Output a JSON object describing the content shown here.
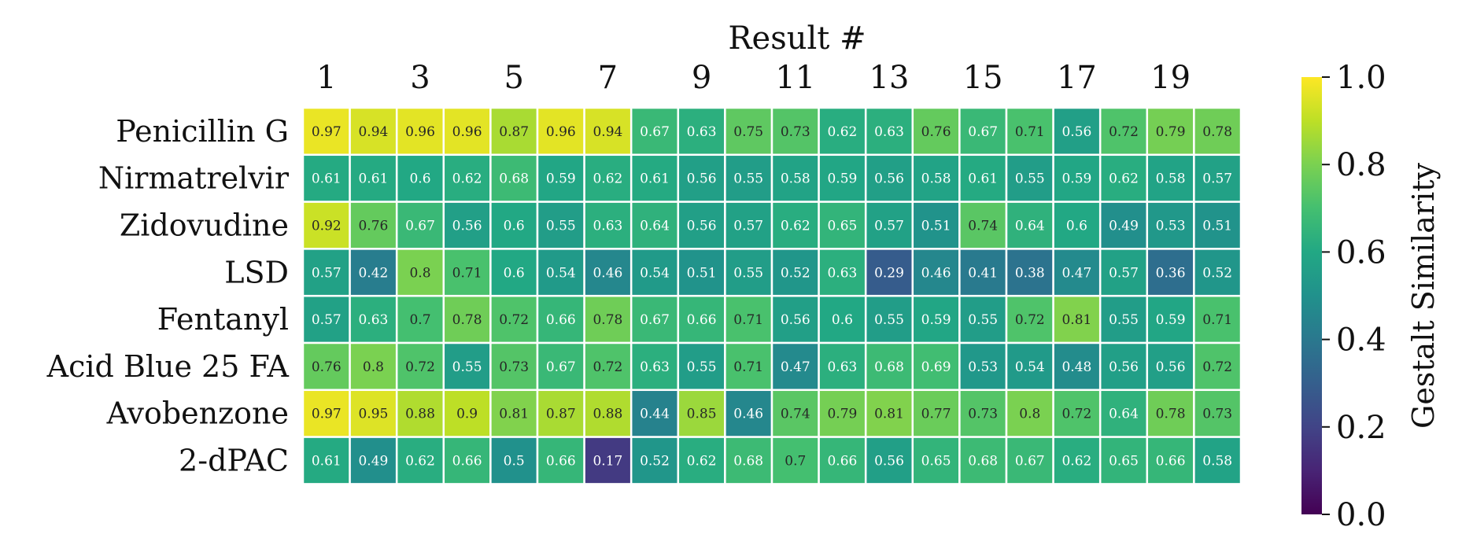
{
  "chart_data": {
    "type": "heatmap",
    "xlabel": "Result #",
    "x_categories": [
      "1",
      "2",
      "3",
      "4",
      "5",
      "6",
      "7",
      "8",
      "9",
      "10",
      "11",
      "12",
      "13",
      "14",
      "15",
      "16",
      "17",
      "18",
      "19",
      "20"
    ],
    "x_tick_labels": [
      "1",
      "",
      "3",
      "",
      "5",
      "",
      "7",
      "",
      "9",
      "",
      "11",
      "",
      "13",
      "",
      "15",
      "",
      "17",
      "",
      "19",
      ""
    ],
    "y_categories": [
      "Penicillin G",
      "Nirmatrelvir",
      "Zidovudine",
      "LSD",
      "Fentanyl",
      "Acid Blue 25 FA",
      "Avobenzone",
      "2-dPAC"
    ],
    "values": [
      [
        0.97,
        0.94,
        0.96,
        0.96,
        0.87,
        0.96,
        0.94,
        0.67,
        0.63,
        0.75,
        0.73,
        0.62,
        0.63,
        0.76,
        0.67,
        0.71,
        0.56,
        0.72,
        0.79,
        0.78
      ],
      [
        0.61,
        0.61,
        0.6,
        0.62,
        0.68,
        0.59,
        0.62,
        0.61,
        0.56,
        0.55,
        0.58,
        0.59,
        0.56,
        0.58,
        0.61,
        0.55,
        0.59,
        0.62,
        0.58,
        0.57
      ],
      [
        0.92,
        0.76,
        0.67,
        0.56,
        0.6,
        0.55,
        0.63,
        0.64,
        0.56,
        0.57,
        0.62,
        0.65,
        0.57,
        0.51,
        0.74,
        0.64,
        0.6,
        0.49,
        0.53,
        0.51
      ],
      [
        0.57,
        0.42,
        0.8,
        0.71,
        0.6,
        0.54,
        0.46,
        0.54,
        0.51,
        0.55,
        0.52,
        0.63,
        0.29,
        0.46,
        0.41,
        0.38,
        0.47,
        0.57,
        0.36,
        0.52
      ],
      [
        0.57,
        0.63,
        0.7,
        0.78,
        0.72,
        0.66,
        0.78,
        0.67,
        0.66,
        0.71,
        0.56,
        0.6,
        0.55,
        0.59,
        0.55,
        0.72,
        0.81,
        0.55,
        0.59,
        0.71
      ],
      [
        0.76,
        0.8,
        0.72,
        0.55,
        0.73,
        0.67,
        0.72,
        0.63,
        0.55,
        0.71,
        0.47,
        0.63,
        0.68,
        0.69,
        0.53,
        0.54,
        0.48,
        0.56,
        0.56,
        0.72
      ],
      [
        0.97,
        0.95,
        0.88,
        0.9,
        0.81,
        0.87,
        0.88,
        0.44,
        0.85,
        0.46,
        0.74,
        0.79,
        0.81,
        0.77,
        0.73,
        0.8,
        0.72,
        0.64,
        0.78,
        0.73
      ],
      [
        0.61,
        0.49,
        0.62,
        0.66,
        0.5,
        0.66,
        0.17,
        0.52,
        0.62,
        0.68,
        0.7,
        0.66,
        0.56,
        0.65,
        0.68,
        0.67,
        0.62,
        0.65,
        0.66,
        0.58
      ]
    ],
    "colorscale": "viridis",
    "vmin": 0.0,
    "vmax": 1.0,
    "colorbar": {
      "label": "Gestalt Similarity",
      "ticks": [
        0.0,
        0.2,
        0.4,
        0.6,
        0.8,
        1.0
      ],
      "tick_labels": [
        "0.0",
        "0.2",
        "0.4",
        "0.6",
        "0.8",
        "1.0"
      ]
    },
    "x_axis_position": "top",
    "annotations": "cell values",
    "grid": false
  }
}
